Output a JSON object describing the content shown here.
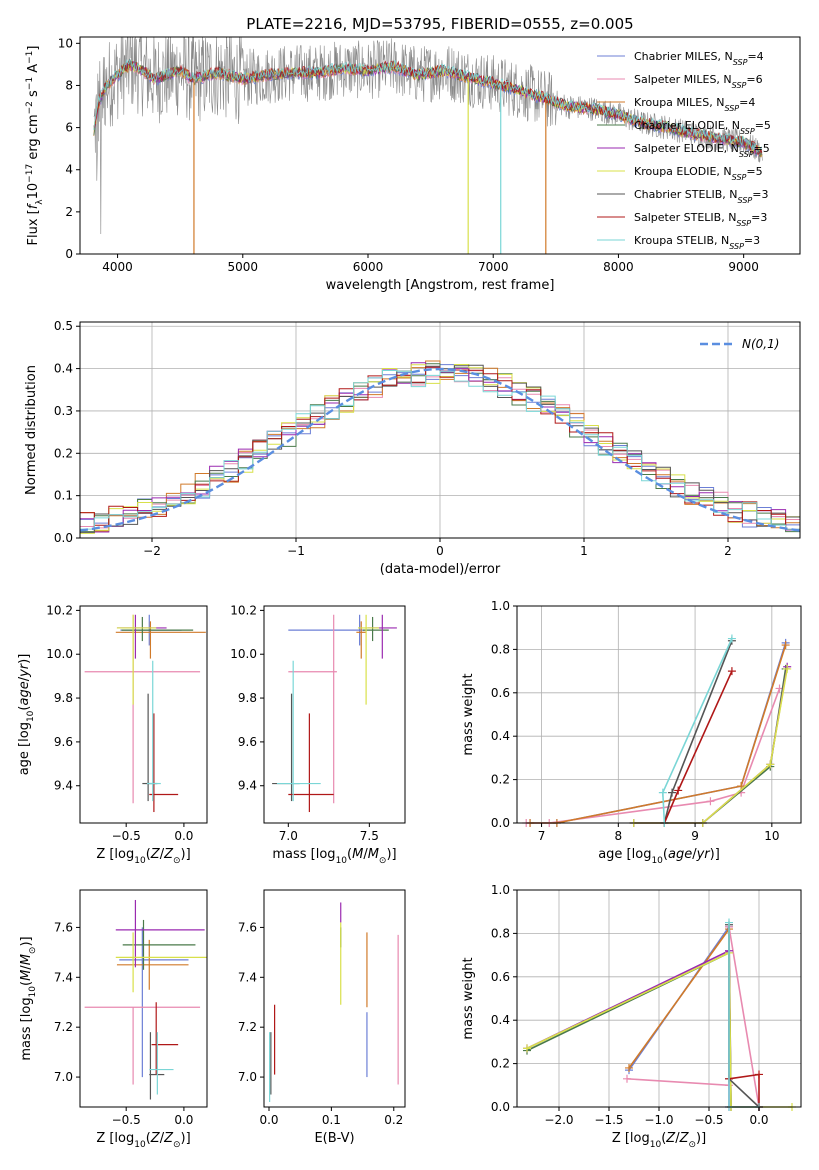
{
  "figure_title": "PLATE=2216, MJD=53795, FIBERID=0555, z=0.005",
  "series_styles": [
    {
      "name": "Chabrier MILES",
      "legend": "Chabrier MILES, N_SSP=4",
      "color": "#6c7fd6"
    },
    {
      "name": "Salpeter MILES",
      "legend": "Salpeter MILES, N_SSP=6",
      "color": "#e88ab0"
    },
    {
      "name": "Kroupa MILES",
      "legend": "Kroupa MILES, N_SSP=4",
      "color": "#d07a2a"
    },
    {
      "name": "Chabrier ELODIE",
      "legend": "Chabrier ELODIE, N_SSP=5",
      "color": "#4a7a4a"
    },
    {
      "name": "Salpeter ELODIE",
      "legend": "Salpeter ELODIE, N_SSP=5",
      "color": "#9a2ab0"
    },
    {
      "name": "Kroupa ELODIE",
      "legend": "Kroupa ELODIE, N_SSP=5",
      "color": "#d8e04a"
    },
    {
      "name": "Chabrier STELIB",
      "legend": "Chabrier STELIB, N_SSP=3",
      "color": "#555555"
    },
    {
      "name": "Salpeter STELIB",
      "legend": "Salpeter STELIB, N_SSP=3",
      "color": "#b01818"
    },
    {
      "name": "Kroupa STELIB",
      "legend": "Kroupa STELIB, N_SSP=3",
      "color": "#7ad6d6"
    }
  ],
  "chart_data": [
    {
      "id": "spectrum",
      "type": "line",
      "title": "PLATE=2216, MJD=53795, FIBERID=0555, z=0.005",
      "xlabel": "wavelength [Angstrom, rest frame]",
      "ylabel": "Flux [f_λ 10^-17 erg cm^-2 s^-1 A^-1]",
      "xlim": [
        3700,
        9450
      ],
      "ylim": [
        0,
        10.3
      ],
      "xticks": [
        4000,
        5000,
        6000,
        7000,
        8000,
        9000
      ],
      "yticks": [
        0,
        2,
        4,
        6,
        8,
        10
      ],
      "observed_color": "#888888",
      "model_envelope": {
        "x": [
          3800,
          3850,
          3900,
          4000,
          4100,
          4200,
          4300,
          4400,
          4500,
          4600,
          4800,
          5000,
          5200,
          5400,
          5600,
          5800,
          6000,
          6200,
          6400,
          6600,
          6800,
          7000,
          7200,
          7400,
          7600,
          7800,
          8000,
          8200,
          8400,
          8600,
          8800,
          9000,
          9150
        ],
        "y": [
          5.5,
          7.2,
          7.9,
          8.5,
          9.0,
          8.7,
          8.3,
          8.5,
          8.7,
          8.3,
          8.6,
          8.3,
          8.5,
          8.6,
          8.6,
          8.8,
          8.7,
          8.9,
          8.5,
          8.7,
          8.4,
          8.1,
          7.8,
          7.4,
          7.0,
          6.9,
          6.6,
          6.2,
          6.0,
          5.7,
          5.5,
          5.3,
          4.8
        ]
      },
      "model_dips": [
        {
          "x": 4610,
          "series": "Kroupa MILES"
        },
        {
          "x": 6800,
          "series": "Kroupa ELODIE"
        },
        {
          "x": 7060,
          "series": "Kroupa STELIB"
        },
        {
          "x": 7420,
          "series": "Kroupa MILES"
        }
      ]
    },
    {
      "id": "residuals",
      "type": "histogram",
      "xlabel": "(data-model)/error",
      "ylabel": "Normed distribution",
      "xlim": [
        -2.5,
        2.5
      ],
      "ylim": [
        0,
        0.51
      ],
      "xticks": [
        -2,
        -1,
        0,
        1,
        2
      ],
      "yticks": [
        0.0,
        0.1,
        0.2,
        0.3,
        0.4,
        0.5
      ],
      "bin_width": 0.1,
      "bin_start": -2.5,
      "legend_entry": "N(0,1)",
      "normal_curve": {
        "mu": 0,
        "sigma": 1,
        "color": "#5a8ee0"
      }
    },
    {
      "id": "age-vs-z",
      "type": "errorbar",
      "xlabel": "Z [log10(Z/Z_sun)]",
      "ylabel": "age [log10(age/yr)]",
      "xlim": [
        -0.9,
        0.2
      ],
      "ylim": [
        9.23,
        10.22
      ],
      "xticks": [
        -0.5,
        0.0
      ],
      "yticks": [
        9.4,
        9.6,
        9.8,
        10.0,
        10.2
      ],
      "points": [
        {
          "series": "Chabrier MILES",
          "x": -0.3,
          "y": 10.11,
          "xlo": 0.25,
          "xhi": 0.28,
          "ylo": 0.07,
          "yhi": 0.07
        },
        {
          "series": "Salpeter MILES",
          "x": -0.44,
          "y": 9.92,
          "xlo": 0.42,
          "xhi": 0.58,
          "ylo": 0.6,
          "yhi": 0.26
        },
        {
          "series": "Kroupa MILES",
          "x": -0.29,
          "y": 10.1,
          "xlo": 0.3,
          "xhi": 0.48,
          "ylo": 0.12,
          "yhi": 0.05
        },
        {
          "series": "Chabrier ELODIE",
          "x": -0.36,
          "y": 10.11,
          "xlo": 0.18,
          "xhi": 0.44,
          "ylo": 0.05,
          "yhi": 0.06
        },
        {
          "series": "Salpeter ELODIE",
          "x": -0.42,
          "y": 10.12,
          "xlo": 0.16,
          "xhi": 0.27,
          "ylo": 0.14,
          "yhi": 0.06
        },
        {
          "series": "Kroupa ELODIE",
          "x": -0.44,
          "y": 10.12,
          "xlo": 0.14,
          "xhi": 0.2,
          "ylo": 0.35,
          "yhi": 0.06
        },
        {
          "series": "Chabrier STELIB",
          "x": -0.31,
          "y": 9.41,
          "xlo": 0.05,
          "xhi": 0.08,
          "ylo": 0.08,
          "yhi": 0.41
        },
        {
          "series": "Salpeter STELIB",
          "x": -0.26,
          "y": 9.36,
          "xlo": 0.04,
          "xhi": 0.21,
          "ylo": 0.08,
          "yhi": 0.37
        },
        {
          "series": "Kroupa STELIB",
          "x": -0.27,
          "y": 9.41,
          "xlo": 0.05,
          "xhi": 0.07,
          "ylo": 0.08,
          "yhi": 0.56
        }
      ]
    },
    {
      "id": "age-vs-mass",
      "type": "errorbar",
      "xlabel": "mass [log10(M/M_sun)]",
      "ylabel": "",
      "xlim": [
        6.85,
        7.72
      ],
      "ylim": [
        9.23,
        10.22
      ],
      "xticks": [
        7.0,
        7.5
      ],
      "yticks": [
        9.4,
        9.6,
        9.8,
        10.0,
        10.2
      ],
      "points": [
        {
          "series": "Chabrier MILES",
          "x": 7.44,
          "y": 10.11,
          "xlo": 0.44,
          "xhi": 0.03,
          "ylo": 0.07,
          "yhi": 0.07
        },
        {
          "series": "Salpeter MILES",
          "x": 7.28,
          "y": 9.92,
          "xlo": 0.28,
          "xhi": 0.02,
          "ylo": 0.6,
          "yhi": 0.26
        },
        {
          "series": "Kroupa MILES",
          "x": 7.45,
          "y": 10.1,
          "xlo": 0.03,
          "xhi": 0.03,
          "ylo": 0.12,
          "yhi": 0.05
        },
        {
          "series": "Chabrier ELODIE",
          "x": 7.52,
          "y": 10.11,
          "xlo": 0.06,
          "xhi": 0.1,
          "ylo": 0.05,
          "yhi": 0.06
        },
        {
          "series": "Salpeter ELODIE",
          "x": 7.58,
          "y": 10.12,
          "xlo": 0.09,
          "xhi": 0.09,
          "ylo": 0.14,
          "yhi": 0.06
        },
        {
          "series": "Kroupa ELODIE",
          "x": 7.48,
          "y": 10.12,
          "xlo": 0.05,
          "xhi": 0.08,
          "ylo": 0.35,
          "yhi": 0.06
        },
        {
          "series": "Chabrier STELIB",
          "x": 7.02,
          "y": 9.41,
          "xlo": 0.12,
          "xhi": 0.05,
          "ylo": 0.08,
          "yhi": 0.41
        },
        {
          "series": "Salpeter STELIB",
          "x": 7.13,
          "y": 9.36,
          "xlo": 0.13,
          "xhi": 0.15,
          "ylo": 0.08,
          "yhi": 0.37
        },
        {
          "series": "Kroupa STELIB",
          "x": 7.03,
          "y": 9.41,
          "xlo": 0.1,
          "xhi": 0.17,
          "ylo": 0.08,
          "yhi": 0.56
        }
      ]
    },
    {
      "id": "weight-vs-age",
      "type": "line",
      "xlabel": "age [log10(age/yr)]",
      "ylabel": "mass weight",
      "xlim": [
        6.68,
        10.38
      ],
      "ylim": [
        0,
        1.0
      ],
      "xticks": [
        7,
        8,
        9,
        10
      ],
      "yticks": [
        0.0,
        0.2,
        0.4,
        0.6,
        0.8,
        1.0
      ],
      "series": [
        {
          "name": "Chabrier MILES",
          "x": [
            6.85,
            7.2,
            9.6,
            10.18
          ],
          "y": [
            0.0,
            0.0,
            0.17,
            0.83
          ]
        },
        {
          "name": "Salpeter MILES",
          "x": [
            6.8,
            7.1,
            9.2,
            9.6,
            10.1
          ],
          "y": [
            0.0,
            0.0,
            0.1,
            0.14,
            0.62
          ]
        },
        {
          "name": "Kroupa MILES",
          "x": [
            6.85,
            7.2,
            9.6,
            10.18
          ],
          "y": [
            0.0,
            0.0,
            0.17,
            0.82
          ]
        },
        {
          "name": "Chabrier ELODIE",
          "x": [
            8.2,
            9.1,
            9.98,
            10.18
          ],
          "y": [
            0.0,
            0.0,
            0.26,
            0.71
          ]
        },
        {
          "name": "Salpeter ELODIE",
          "x": [
            8.2,
            9.1,
            9.98,
            10.2
          ],
          "y": [
            0.0,
            0.0,
            0.27,
            0.72
          ]
        },
        {
          "name": "Kroupa ELODIE",
          "x": [
            8.2,
            9.1,
            9.98,
            10.2
          ],
          "y": [
            0.0,
            0.0,
            0.27,
            0.71
          ]
        },
        {
          "name": "Chabrier STELIB",
          "x": [
            8.6,
            8.7,
            9.48
          ],
          "y": [
            0.0,
            0.14,
            0.84
          ]
        },
        {
          "name": "Salpeter STELIB",
          "x": [
            8.6,
            8.78,
            9.48
          ],
          "y": [
            0.0,
            0.15,
            0.7
          ]
        },
        {
          "name": "Kroupa STELIB",
          "x": [
            8.6,
            8.58,
            9.48
          ],
          "y": [
            0.0,
            0.14,
            0.85
          ]
        }
      ]
    },
    {
      "id": "mass-vs-z",
      "type": "errorbar",
      "xlabel": "Z [log10(Z/Z_sun)]",
      "ylabel": "mass [log10(M/M_sun)]",
      "xlim": [
        -0.9,
        0.2
      ],
      "ylim": [
        6.88,
        7.75
      ],
      "xticks": [
        -0.5,
        0.0
      ],
      "yticks": [
        7.0,
        7.2,
        7.4,
        7.6
      ],
      "points": [
        {
          "series": "Chabrier MILES",
          "x": -0.36,
          "y": 7.47,
          "xlo": 0.2,
          "xhi": 0.4,
          "ylo": 0.47,
          "yhi": 0.13
        },
        {
          "series": "Salpeter MILES",
          "x": -0.44,
          "y": 7.28,
          "xlo": 0.42,
          "xhi": 0.58,
          "ylo": 0.31,
          "yhi": 0.0
        },
        {
          "series": "Kroupa MILES",
          "x": -0.3,
          "y": 7.45,
          "xlo": 0.28,
          "xhi": 0.34,
          "ylo": 0.1,
          "yhi": 0.1
        },
        {
          "series": "Chabrier ELODIE",
          "x": -0.35,
          "y": 7.53,
          "xlo": 0.18,
          "xhi": 0.45,
          "ylo": 0.1,
          "yhi": 0.1
        },
        {
          "series": "Salpeter ELODIE",
          "x": -0.42,
          "y": 7.59,
          "xlo": 0.17,
          "xhi": 0.6,
          "ylo": 0.15,
          "yhi": 0.12
        },
        {
          "series": "Kroupa ELODIE",
          "x": -0.44,
          "y": 7.48,
          "xlo": 0.15,
          "xhi": 0.64,
          "ylo": 0.14,
          "yhi": 0.1
        },
        {
          "series": "Chabrier STELIB",
          "x": -0.29,
          "y": 7.01,
          "xlo": 0.01,
          "xhi": 0.12,
          "ylo": 0.1,
          "yhi": 0.17
        },
        {
          "series": "Salpeter STELIB",
          "x": -0.24,
          "y": 7.13,
          "xlo": 0.04,
          "xhi": 0.19,
          "ylo": 0.12,
          "yhi": 0.17
        },
        {
          "series": "Kroupa STELIB",
          "x": -0.23,
          "y": 7.03,
          "xlo": 0.07,
          "xhi": 0.14,
          "ylo": 0.1,
          "yhi": 0.15
        }
      ]
    },
    {
      "id": "mass-vs-ebv",
      "type": "errorbar",
      "xlabel": "E(B-V)",
      "ylabel": "",
      "xlim": [
        -0.008,
        0.218
      ],
      "ylim": [
        6.88,
        7.75
      ],
      "xticks": [
        0.0,
        0.1,
        0.2
      ],
      "yticks": [
        7.0,
        7.2,
        7.4,
        7.6
      ],
      "points": [
        {
          "series": "Chabrier MILES",
          "x": 0.157,
          "y": 7.26,
          "ylo": 0.26,
          "yhi": 0.0
        },
        {
          "series": "Salpeter MILES",
          "x": 0.207,
          "y": 7.57,
          "ylo": 0.6,
          "yhi": 0.0
        },
        {
          "series": "Kroupa MILES",
          "x": 0.157,
          "y": 7.58,
          "ylo": 0.3,
          "yhi": 0.0
        },
        {
          "series": "Chabrier ELODIE",
          "x": 0.115,
          "y": 7.6,
          "ylo": 0.08,
          "yhi": 0.0
        },
        {
          "series": "Salpeter ELODIE",
          "x": 0.115,
          "y": 7.7,
          "ylo": 0.08,
          "yhi": 0.0
        },
        {
          "series": "Kroupa ELODIE",
          "x": 0.115,
          "y": 7.62,
          "ylo": 0.33,
          "yhi": 0.0
        },
        {
          "series": "Chabrier STELIB",
          "x": 0.003,
          "y": 7.18,
          "ylo": 0.25,
          "yhi": 0.0
        },
        {
          "series": "Salpeter STELIB",
          "x": 0.009,
          "y": 7.29,
          "ylo": 0.28,
          "yhi": 0.0
        },
        {
          "series": "Kroupa STELIB",
          "x": 0.001,
          "y": 7.18,
          "ylo": 0.28,
          "yhi": 0.0
        }
      ]
    },
    {
      "id": "weight-vs-z",
      "type": "line",
      "xlabel": "Z [log10(Z/Z_sun)]",
      "ylabel": "mass weight",
      "xlim": [
        -2.42,
        0.42
      ],
      "ylim": [
        0,
        1.0
      ],
      "xticks": [
        -2.0,
        -1.5,
        -1.0,
        -0.5,
        0.0
      ],
      "yticks": [
        0.0,
        0.2,
        0.4,
        0.6,
        0.8,
        1.0
      ],
      "series": [
        {
          "name": "Chabrier MILES",
          "x": [
            -1.3,
            -0.3,
            -0.28,
            0.0
          ],
          "y": [
            0.17,
            0.83,
            0.0,
            0.0
          ]
        },
        {
          "name": "Salpeter MILES",
          "x": [
            -1.32,
            -0.3,
            -0.3,
            0.0
          ],
          "y": [
            0.13,
            0.1,
            0.83,
            0.0
          ]
        },
        {
          "name": "Kroupa MILES",
          "x": [
            -1.3,
            -0.3,
            -0.28,
            0.0
          ],
          "y": [
            0.18,
            0.82,
            0.0,
            0.0
          ]
        },
        {
          "name": "Chabrier ELODIE",
          "x": [
            -2.32,
            -0.3,
            -0.28,
            0.0
          ],
          "y": [
            0.26,
            0.71,
            0.0,
            0.0
          ]
        },
        {
          "name": "Salpeter ELODIE",
          "x": [
            -2.32,
            -0.3,
            -0.3,
            0.0
          ],
          "y": [
            0.27,
            0.72,
            0.0,
            0.0
          ]
        },
        {
          "name": "Kroupa ELODIE",
          "x": [
            -2.32,
            -0.3,
            -0.28,
            0.33
          ],
          "y": [
            0.27,
            0.71,
            0.0,
            0.0
          ]
        },
        {
          "name": "Chabrier STELIB",
          "x": [
            -0.3,
            -0.3,
            0.0
          ],
          "y": [
            0.84,
            0.13,
            0.0
          ]
        },
        {
          "name": "Salpeter STELIB",
          "x": [
            -0.3,
            0.0,
            0.0
          ],
          "y": [
            0.13,
            0.15,
            0.0
          ]
        },
        {
          "name": "Kroupa STELIB",
          "x": [
            -0.3,
            -0.3,
            0.0
          ],
          "y": [
            0.85,
            0.0,
            0.0
          ]
        }
      ]
    }
  ]
}
